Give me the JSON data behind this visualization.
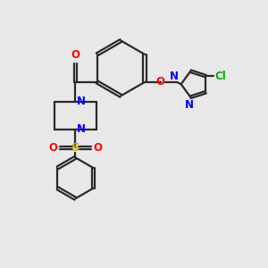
{
  "bg_color": "#e8e8e8",
  "bond_color": "#2a2a2a",
  "N_color": "#0000ff",
  "O_color": "#ff0000",
  "S_color": "#ccaa00",
  "Cl_color": "#00aa00",
  "line_width": 1.6,
  "figsize": [
    3.0,
    3.0
  ],
  "dpi": 100,
  "xlim": [
    0,
    10
  ],
  "ylim": [
    0,
    10
  ]
}
